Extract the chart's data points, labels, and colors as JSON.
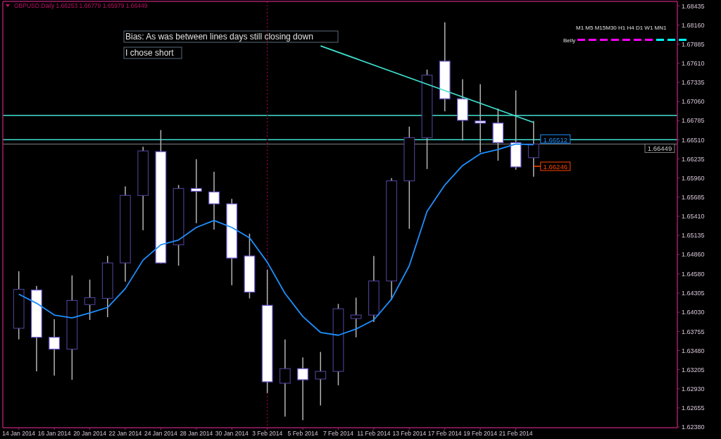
{
  "chart_data": {
    "type": "candlestick",
    "title": "GBPUSD.Daily  1.66253 1.66779 1.65979 1.66449",
    "categories": [
      "14 Jan 2014",
      null,
      "16 Jan 2014",
      null,
      "20 Jan 2014",
      null,
      "22 Jan 2014",
      null,
      "24 Jan 2014",
      null,
      "28 Jan 2014",
      null,
      "30 Jan 2014",
      null,
      "3 Feb 2014",
      null,
      "5 Feb 2014",
      null,
      "7 Feb 2014",
      null,
      "11 Feb 2014",
      null,
      "13 Feb 2014",
      null,
      "17 Feb 2014",
      null,
      "19 Feb 2014",
      null,
      "21 Feb 2014",
      null
    ],
    "ohlc": [
      [
        1.638,
        1.6462,
        1.6364,
        1.6436
      ],
      [
        1.6435,
        1.6441,
        1.6318,
        1.6367
      ],
      [
        1.6367,
        1.6393,
        1.6312,
        1.635
      ],
      [
        1.635,
        1.6456,
        1.6306,
        1.642
      ],
      [
        1.6414,
        1.645,
        1.6392,
        1.6424
      ],
      [
        1.6423,
        1.6484,
        1.6396,
        1.6474
      ],
      [
        1.6474,
        1.6584,
        1.6447,
        1.6571
      ],
      [
        1.6571,
        1.6641,
        1.6521,
        1.6635
      ],
      [
        1.6634,
        1.6665,
        1.6473,
        1.6474
      ],
      [
        1.65,
        1.6586,
        1.647,
        1.6581
      ],
      [
        1.6581,
        1.6623,
        1.6531,
        1.6577
      ],
      [
        1.6576,
        1.6605,
        1.6522,
        1.6559
      ],
      [
        1.6559,
        1.6566,
        1.6442,
        1.6481
      ],
      [
        1.6484,
        1.6516,
        1.6423,
        1.6432
      ],
      [
        1.6413,
        1.6464,
        1.6287,
        1.6303
      ],
      [
        1.6301,
        1.6364,
        1.6253,
        1.6322
      ],
      [
        1.6322,
        1.6338,
        1.6248,
        1.6306
      ],
      [
        1.6307,
        1.6346,
        1.6269,
        1.6318
      ],
      [
        1.6318,
        1.6415,
        1.6298,
        1.6408
      ],
      [
        1.6394,
        1.6424,
        1.6367,
        1.6399
      ],
      [
        1.6399,
        1.6484,
        1.6389,
        1.6448
      ],
      [
        1.6448,
        1.6596,
        1.6421,
        1.6592
      ],
      [
        1.6592,
        1.667,
        1.6523,
        1.6654
      ],
      [
        1.6654,
        1.6752,
        1.6609,
        1.6744
      ],
      [
        1.6764,
        1.682,
        1.6692,
        1.671
      ],
      [
        1.671,
        1.6738,
        1.665,
        1.6679
      ],
      [
        1.6678,
        1.6731,
        1.6633,
        1.6675
      ],
      [
        1.6675,
        1.6696,
        1.6621,
        1.6647
      ],
      [
        1.6647,
        1.6722,
        1.6608,
        1.6612
      ],
      [
        1.66253,
        1.66779,
        1.65979,
        1.66449
      ]
    ],
    "colors": [
      "#483d8b",
      "#ffffff",
      "#ffffff",
      "#483d8b",
      "#483d8b",
      "#483d8b",
      "#483d8b",
      "#483d8b",
      "#ffffff",
      "#483d8b",
      "#ffffff",
      "#ffffff",
      "#ffffff",
      "#ffffff",
      "#ffffff",
      "#483d8b",
      "#ffffff",
      "#483d8b",
      "#483d8b",
      "#483d8b",
      "#483d8b",
      "#483d8b",
      "#483d8b",
      "#483d8b",
      "#ffffff",
      "#ffffff",
      "#ffffff",
      "#ffffff",
      "#ffffff",
      "#483d8b"
    ],
    "series": [
      {
        "type": "line",
        "color": "#1e90ff",
        "values": [
          1.6429,
          1.6416,
          1.6399,
          1.6395,
          1.6402,
          1.641,
          1.6437,
          1.6478,
          1.65,
          1.6507,
          1.6525,
          1.6535,
          1.6525,
          1.651,
          1.6475,
          1.643,
          1.6397,
          1.6374,
          1.637,
          1.6379,
          1.6392,
          1.6422,
          1.647,
          1.6548,
          1.6586,
          1.6614,
          1.6631,
          1.6637,
          1.6645,
          1.6644
        ]
      },
      {
        "type": "line",
        "color": "#40e0d0",
        "values": [
          null,
          null,
          null,
          null,
          null,
          null,
          null,
          null,
          null,
          null,
          null,
          null,
          null,
          null,
          null,
          null,
          null,
          1.6786,
          null,
          null,
          null,
          null,
          null,
          null,
          null,
          null,
          null,
          null,
          null,
          1.6676
        ]
      }
    ],
    "ylim": [
      1.6237,
      1.685
    ],
    "yticks": [
      {
        "value": 1.68435,
        "label": "1.68435"
      },
      {
        "value": 1.6816,
        "label": "1.68160"
      },
      {
        "value": 1.67885,
        "label": "1.67885"
      },
      {
        "value": 1.6761,
        "label": "1.67610"
      },
      {
        "value": 1.67335,
        "label": "1.67335"
      },
      {
        "value": 1.6706,
        "label": "1.67060"
      },
      {
        "value": 1.66785,
        "label": "1.66785"
      },
      {
        "value": 1.6651,
        "label": "1.66510"
      },
      {
        "value": 1.66235,
        "label": "1.66235"
      },
      {
        "value": 1.6596,
        "label": "1.65960"
      },
      {
        "value": 1.65685,
        "label": "1.65685"
      },
      {
        "value": 1.6541,
        "label": "1.65410"
      },
      {
        "value": 1.65135,
        "label": "1.65135"
      },
      {
        "value": 1.6486,
        "label": "1.64860"
      },
      {
        "value": 1.6458,
        "label": "1.64580"
      },
      {
        "value": 1.64305,
        "label": "1.64305"
      },
      {
        "value": 1.6403,
        "label": "1.64030"
      },
      {
        "value": 1.63755,
        "label": "1.63755"
      },
      {
        "value": 1.6348,
        "label": "1.63480"
      },
      {
        "value": 1.63205,
        "label": "1.63205"
      },
      {
        "value": 1.6293,
        "label": "1.62930"
      },
      {
        "value": 1.62655,
        "label": "1.62655"
      },
      {
        "value": 1.6238,
        "label": "1.62380"
      }
    ],
    "ref_lines": [
      {
        "axis": "y",
        "value": 1.66449,
        "label": "1.66449",
        "color": "#808080"
      },
      {
        "axis": "y",
        "value": 1.66512,
        "label": "1.66512",
        "color": "#40e0d0"
      },
      {
        "axis": "y",
        "value": 1.6686,
        "color": "#40e0d0"
      },
      {
        "axis": "x",
        "value": "3 Feb 2014",
        "color": "#800040",
        "line_style": "dotted"
      }
    ],
    "annotations": [
      "Bias: As was between lines days still closing down",
      "I chose short",
      "M1 M5 M15M30 H1 H4 D1 W1 MN1",
      "Belly",
      "1.66246"
    ],
    "grid": false,
    "legend": false
  }
}
